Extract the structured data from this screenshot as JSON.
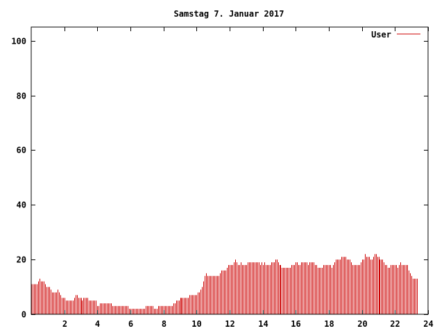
{
  "chart_data": {
    "type": "bar",
    "title": "Samstag 7. Januar 2017",
    "xlabel": "",
    "ylabel": "",
    "xlim": [
      0,
      24
    ],
    "ylim": [
      0,
      105
    ],
    "xticks": [
      2,
      4,
      6,
      8,
      10,
      12,
      14,
      16,
      18,
      20,
      22,
      24
    ],
    "yticks": [
      0,
      20,
      40,
      60,
      80,
      100
    ],
    "grid": false,
    "legend_position": "top-right",
    "bar_color": "#cc0000",
    "series": [
      {
        "name": "User",
        "interval_minutes": 5,
        "values": [
          11,
          11,
          11,
          11,
          11,
          12,
          13,
          12,
          12,
          12,
          11,
          10,
          10,
          10,
          9,
          8,
          8,
          8,
          8,
          9,
          8,
          7,
          6,
          6,
          6,
          5,
          5,
          5,
          5,
          5,
          5,
          6,
          7,
          7,
          6,
          6,
          6,
          5,
          6,
          6,
          6,
          6,
          5,
          5,
          5,
          5,
          5,
          5,
          3,
          3,
          4,
          4,
          4,
          4,
          4,
          4,
          4,
          4,
          4,
          3,
          3,
          3,
          3,
          3,
          3,
          3,
          3,
          3,
          3,
          3,
          3,
          2,
          2,
          2,
          2,
          2,
          2,
          2,
          2,
          2,
          2,
          2,
          2,
          3,
          3,
          3,
          3,
          3,
          3,
          2,
          2,
          2,
          3,
          3,
          3,
          3,
          3,
          3,
          3,
          3,
          3,
          3,
          3,
          4,
          4,
          5,
          5,
          5,
          6,
          6,
          6,
          6,
          6,
          6,
          6,
          7,
          7,
          7,
          7,
          7,
          7,
          8,
          8,
          9,
          10,
          12,
          14,
          15,
          14,
          14,
          14,
          14,
          14,
          14,
          14,
          14,
          14,
          15,
          16,
          16,
          16,
          16,
          17,
          18,
          18,
          18,
          18,
          19,
          20,
          19,
          18,
          18,
          19,
          18,
          18,
          18,
          18,
          19,
          19,
          19,
          19,
          19,
          19,
          19,
          19,
          19,
          18,
          19,
          18,
          19,
          18,
          18,
          18,
          18,
          19,
          19,
          19,
          20,
          20,
          19,
          18,
          18,
          17,
          17,
          17,
          17,
          17,
          17,
          17,
          18,
          18,
          18,
          19,
          19,
          18,
          18,
          19,
          19,
          19,
          19,
          19,
          18,
          19,
          19,
          19,
          19,
          18,
          18,
          17,
          17,
          17,
          17,
          18,
          18,
          18,
          18,
          18,
          18,
          17,
          18,
          19,
          20,
          20,
          20,
          20,
          21,
          21,
          21,
          21,
          20,
          20,
          20,
          19,
          18,
          18,
          18,
          18,
          18,
          18,
          19,
          20,
          20,
          22,
          21,
          21,
          21,
          20,
          20,
          21,
          22,
          22,
          21,
          21,
          20,
          20,
          20,
          19,
          18,
          18,
          17,
          17,
          18,
          18,
          18,
          18,
          18,
          17,
          18,
          19,
          18,
          18,
          18,
          18,
          18,
          16,
          15,
          14,
          13,
          13,
          13,
          13
        ]
      }
    ]
  }
}
